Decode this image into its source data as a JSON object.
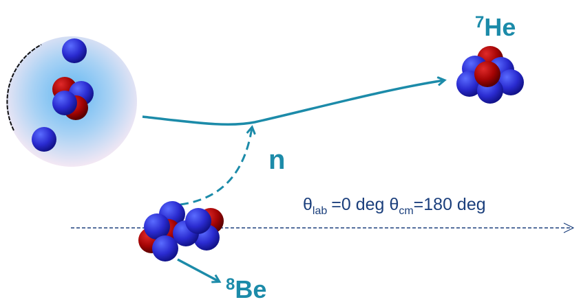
{
  "labels": {
    "ejectile": {
      "mass": "7",
      "symbol": "He"
    },
    "neutron": "n",
    "recoil": {
      "mass": "8",
      "symbol": "Be"
    },
    "angles": {
      "lab_symbol": "θ",
      "lab_sub": "lab",
      "lab_value": "=0 deg",
      "cm_symbol": "θ",
      "cm_sub": "cm",
      "cm_value": "=180 deg"
    }
  }
}
